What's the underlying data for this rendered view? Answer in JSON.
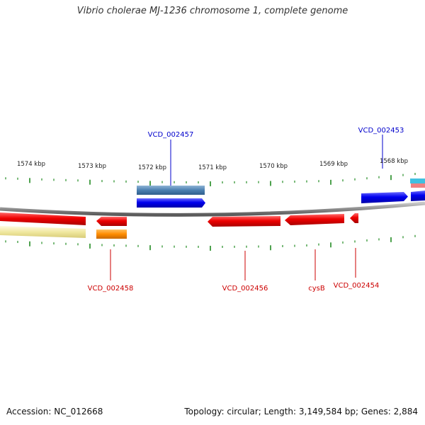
{
  "title": "Vibrio cholerae MJ-1236 chromosome 1, complete genome",
  "footer": {
    "accession": "Accession: NC_012668",
    "summary": "Topology: circular; Length: 3,149,584 bp; Genes: 2,884"
  },
  "colors": {
    "forward_cds": "#0000ee",
    "reverse_cds": "#ee0000",
    "forward_label": "#0000cc",
    "reverse_label": "#cc0000",
    "tick": "#228b22",
    "backbone": "#8c8c8c",
    "forward_rna": "#4a7fb0",
    "reverse_rna": "#f0e8a0",
    "reverse_misc": "#ff8c00",
    "forward_aux_1": "#40c0e0",
    "forward_aux_2": "#f08080"
  },
  "scale_labels": [
    "1574 kbp",
    "1573 kbp",
    "1572 kbp",
    "1571 kbp",
    "1570 kbp",
    "1569 kbp",
    "1568 kbp"
  ],
  "gene_labels": {
    "forward": [
      "VCD_002457",
      "VCD_002453"
    ],
    "reverse": [
      "VCD_002458",
      "VCD_002456",
      "cysB",
      "VCD_002454"
    ]
  }
}
